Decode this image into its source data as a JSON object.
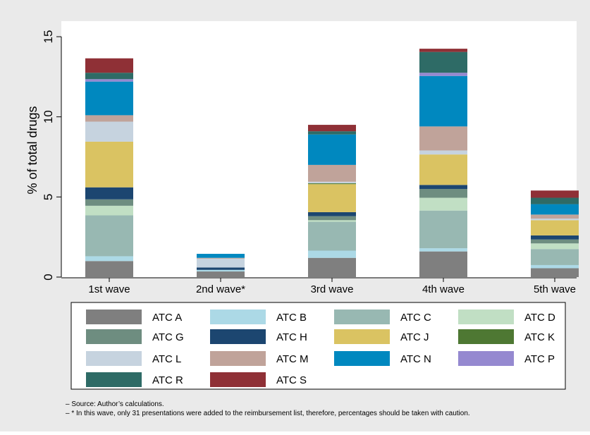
{
  "chart_data": {
    "type": "bar",
    "stacked": true,
    "categories": [
      "1st wave",
      "2nd wave*",
      "3rd wave",
      "4th wave",
      "5th wave"
    ],
    "ylabel": "% of total drugs",
    "xlabel": "",
    "ylim": [
      0,
      15
    ],
    "yticks": [
      0,
      5,
      10,
      15
    ],
    "grid": false,
    "legend_position": "bottom",
    "series": [
      {
        "name": "ATC A",
        "color": "#7f7f7f",
        "values": [
          1.0,
          0.35,
          1.2,
          1.6,
          0.55
        ]
      },
      {
        "name": "ATC B",
        "color": "#acd9e6",
        "values": [
          0.3,
          0.1,
          0.45,
          0.2,
          0.2
        ]
      },
      {
        "name": "ATC C",
        "color": "#98b8b2",
        "values": [
          2.55,
          0.0,
          1.8,
          2.35,
          1.0
        ]
      },
      {
        "name": "ATC D",
        "color": "#c1dfc4",
        "values": [
          0.6,
          0.0,
          0.1,
          0.8,
          0.35
        ]
      },
      {
        "name": "ATC G",
        "color": "#6e8d80",
        "values": [
          0.4,
          0.0,
          0.25,
          0.55,
          0.25
        ]
      },
      {
        "name": "ATC H",
        "color": "#1c4670",
        "values": [
          0.75,
          0.15,
          0.25,
          0.25,
          0.25
        ]
      },
      {
        "name": "ATC J",
        "color": "#dac362",
        "values": [
          2.85,
          0.0,
          1.75,
          1.9,
          0.95
        ]
      },
      {
        "name": "ATC K",
        "color": "#4e7833",
        "values": [
          0.0,
          0.0,
          0.05,
          0.0,
          0.0
        ]
      },
      {
        "name": "ATC L",
        "color": "#c6d3df",
        "values": [
          1.25,
          0.55,
          0.1,
          0.25,
          0.1
        ]
      },
      {
        "name": "ATC M",
        "color": "#c0a39a",
        "values": [
          0.4,
          0.05,
          1.05,
          1.5,
          0.25
        ]
      },
      {
        "name": "ATC N",
        "color": "#0088bf",
        "values": [
          2.1,
          0.25,
          1.9,
          3.15,
          0.65
        ]
      },
      {
        "name": "ATC P",
        "color": "#9589d0",
        "values": [
          0.15,
          0.0,
          0.0,
          0.2,
          0.0
        ]
      },
      {
        "name": "ATC R",
        "color": "#2e6b66",
        "values": [
          0.4,
          0.0,
          0.2,
          1.3,
          0.4
        ]
      },
      {
        "name": "ATC S",
        "color": "#8f3036",
        "values": [
          0.9,
          0.0,
          0.4,
          0.2,
          0.45
        ]
      }
    ],
    "notes": [
      "– Source: Author’s calculations.",
      "– * In this wave, only 31 presentations were added to the reimbursement list, therefore, percentages should be taken with caution."
    ]
  }
}
